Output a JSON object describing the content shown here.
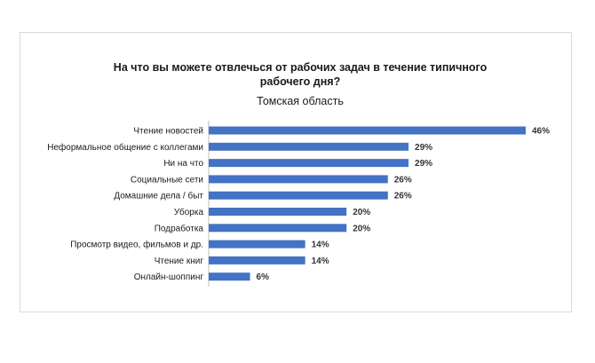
{
  "chart_data": {
    "type": "bar",
    "orientation": "horizontal",
    "title": "На что вы можете отвлечься от рабочих задач в течение типичного рабочего дня?",
    "subtitle": "Томская область",
    "categories": [
      "Чтение новостей",
      "Неформальное общение с коллегами",
      "Ни на что",
      "Социальные сети",
      "Домашние дела / быт",
      "Уборка",
      "Подработка",
      "Просмотр видео, фильмов и др.",
      "Чтение книг",
      "Онлайн-шоппинг"
    ],
    "values": [
      46,
      29,
      29,
      26,
      26,
      20,
      20,
      14,
      14,
      6
    ],
    "value_labels": [
      "46%",
      "29%",
      "29%",
      "26%",
      "26%",
      "20%",
      "20%",
      "14%",
      "14%",
      "6%"
    ],
    "unit": "%",
    "xlim": [
      0,
      50
    ],
    "grid": false,
    "legend": "none",
    "bar_color": "#4472c4"
  }
}
